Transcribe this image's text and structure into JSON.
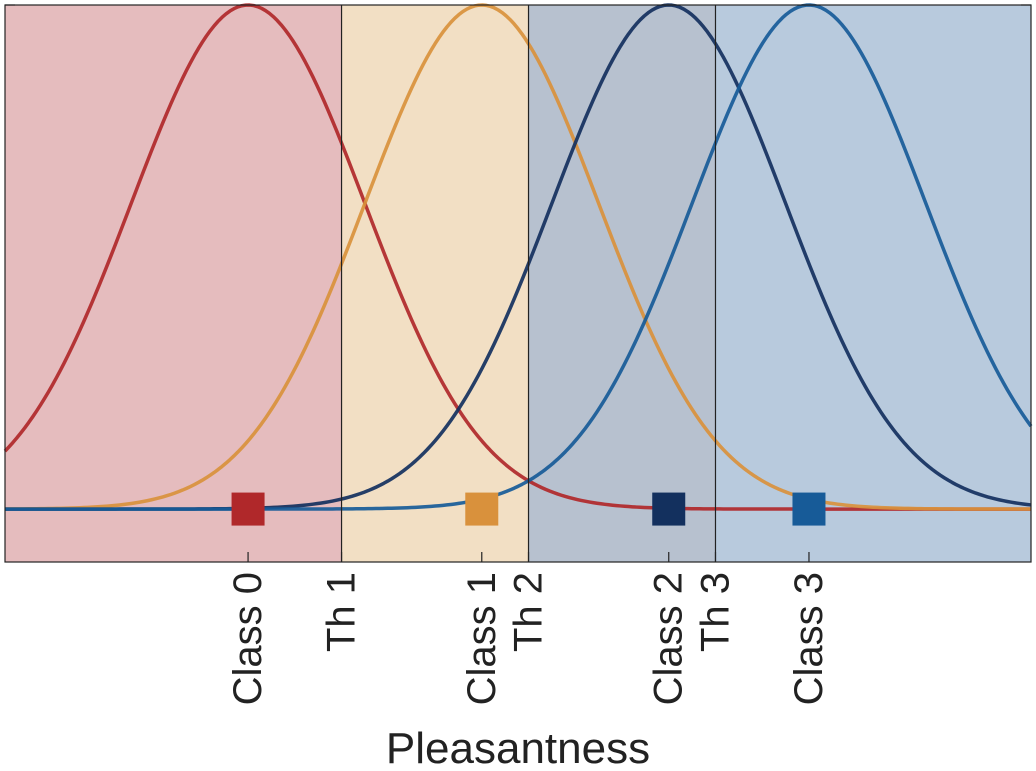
{
  "chart_data": {
    "type": "line",
    "xlabel": "Pleasantness",
    "ylabel": "",
    "title": "",
    "xlim": [
      -1.04,
      3.35
    ],
    "ylim": [
      -0.105,
      1.0
    ],
    "grid": false,
    "regions": [
      {
        "from": -1.04,
        "to": 0.4,
        "color": "#e5bcbe"
      },
      {
        "from": 0.4,
        "to": 1.2,
        "color": "#f2dfc4"
      },
      {
        "from": 1.2,
        "to": 2.0,
        "color": "#b7c1cf"
      },
      {
        "from": 2.0,
        "to": 3.35,
        "color": "#b8cadd"
      }
    ],
    "thresholds": [
      {
        "label": "Th 1",
        "x": 0.4
      },
      {
        "label": "Th 2",
        "x": 1.2
      },
      {
        "label": "Th 3",
        "x": 2.0
      }
    ],
    "series": [
      {
        "mean": 0.0,
        "sd": 0.5,
        "color": "#b0282a"
      },
      {
        "mean": 1.0,
        "sd": 0.5,
        "color": "#d9913c"
      },
      {
        "mean": 1.8,
        "sd": 0.5,
        "color": "#13305e"
      },
      {
        "mean": 2.4,
        "sd": 0.5,
        "color": "#175b98"
      }
    ],
    "markers": [
      {
        "label": "Class 0",
        "x": 0.0,
        "color": "#b0282a"
      },
      {
        "label": "Class 1",
        "x": 1.0,
        "color": "#d9913c"
      },
      {
        "label": "Class 2",
        "x": 1.8,
        "color": "#13305e"
      },
      {
        "label": "Class 3",
        "x": 2.4,
        "color": "#175b98"
      }
    ]
  }
}
